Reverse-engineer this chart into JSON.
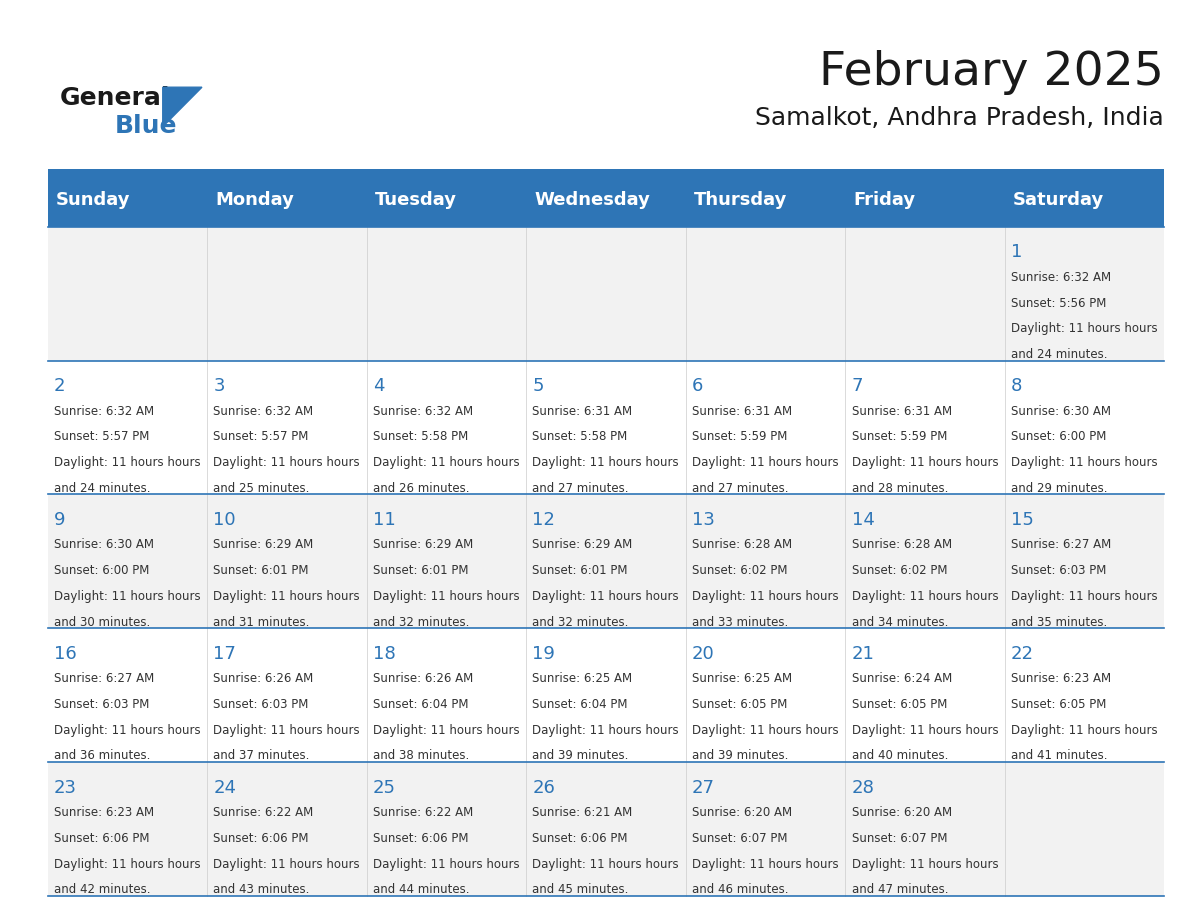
{
  "title": "February 2025",
  "subtitle": "Samalkot, Andhra Pradesh, India",
  "days_of_week": [
    "Sunday",
    "Monday",
    "Tuesday",
    "Wednesday",
    "Thursday",
    "Friday",
    "Saturday"
  ],
  "header_bg": "#2e75b6",
  "header_text_color": "#ffffff",
  "cell_bg_light": "#f2f2f2",
  "cell_bg_white": "#ffffff",
  "grid_line_color": "#2e75b6",
  "day_num_color": "#2e75b6",
  "text_color": "#333333",
  "calendar_data": [
    [
      null,
      null,
      null,
      null,
      null,
      null,
      {
        "day": 1,
        "sunrise": "6:32 AM",
        "sunset": "5:56 PM",
        "daylight": "11 hours and 24 minutes."
      }
    ],
    [
      {
        "day": 2,
        "sunrise": "6:32 AM",
        "sunset": "5:57 PM",
        "daylight": "11 hours and 24 minutes."
      },
      {
        "day": 3,
        "sunrise": "6:32 AM",
        "sunset": "5:57 PM",
        "daylight": "11 hours and 25 minutes."
      },
      {
        "day": 4,
        "sunrise": "6:32 AM",
        "sunset": "5:58 PM",
        "daylight": "11 hours and 26 minutes."
      },
      {
        "day": 5,
        "sunrise": "6:31 AM",
        "sunset": "5:58 PM",
        "daylight": "11 hours and 27 minutes."
      },
      {
        "day": 6,
        "sunrise": "6:31 AM",
        "sunset": "5:59 PM",
        "daylight": "11 hours and 27 minutes."
      },
      {
        "day": 7,
        "sunrise": "6:31 AM",
        "sunset": "5:59 PM",
        "daylight": "11 hours and 28 minutes."
      },
      {
        "day": 8,
        "sunrise": "6:30 AM",
        "sunset": "6:00 PM",
        "daylight": "11 hours and 29 minutes."
      }
    ],
    [
      {
        "day": 9,
        "sunrise": "6:30 AM",
        "sunset": "6:00 PM",
        "daylight": "11 hours and 30 minutes."
      },
      {
        "day": 10,
        "sunrise": "6:29 AM",
        "sunset": "6:01 PM",
        "daylight": "11 hours and 31 minutes."
      },
      {
        "day": 11,
        "sunrise": "6:29 AM",
        "sunset": "6:01 PM",
        "daylight": "11 hours and 32 minutes."
      },
      {
        "day": 12,
        "sunrise": "6:29 AM",
        "sunset": "6:01 PM",
        "daylight": "11 hours and 32 minutes."
      },
      {
        "day": 13,
        "sunrise": "6:28 AM",
        "sunset": "6:02 PM",
        "daylight": "11 hours and 33 minutes."
      },
      {
        "day": 14,
        "sunrise": "6:28 AM",
        "sunset": "6:02 PM",
        "daylight": "11 hours and 34 minutes."
      },
      {
        "day": 15,
        "sunrise": "6:27 AM",
        "sunset": "6:03 PM",
        "daylight": "11 hours and 35 minutes."
      }
    ],
    [
      {
        "day": 16,
        "sunrise": "6:27 AM",
        "sunset": "6:03 PM",
        "daylight": "11 hours and 36 minutes."
      },
      {
        "day": 17,
        "sunrise": "6:26 AM",
        "sunset": "6:03 PM",
        "daylight": "11 hours and 37 minutes."
      },
      {
        "day": 18,
        "sunrise": "6:26 AM",
        "sunset": "6:04 PM",
        "daylight": "11 hours and 38 minutes."
      },
      {
        "day": 19,
        "sunrise": "6:25 AM",
        "sunset": "6:04 PM",
        "daylight": "11 hours and 39 minutes."
      },
      {
        "day": 20,
        "sunrise": "6:25 AM",
        "sunset": "6:05 PM",
        "daylight": "11 hours and 39 minutes."
      },
      {
        "day": 21,
        "sunrise": "6:24 AM",
        "sunset": "6:05 PM",
        "daylight": "11 hours and 40 minutes."
      },
      {
        "day": 22,
        "sunrise": "6:23 AM",
        "sunset": "6:05 PM",
        "daylight": "11 hours and 41 minutes."
      }
    ],
    [
      {
        "day": 23,
        "sunrise": "6:23 AM",
        "sunset": "6:06 PM",
        "daylight": "11 hours and 42 minutes."
      },
      {
        "day": 24,
        "sunrise": "6:22 AM",
        "sunset": "6:06 PM",
        "daylight": "11 hours and 43 minutes."
      },
      {
        "day": 25,
        "sunrise": "6:22 AM",
        "sunset": "6:06 PM",
        "daylight": "11 hours and 44 minutes."
      },
      {
        "day": 26,
        "sunrise": "6:21 AM",
        "sunset": "6:06 PM",
        "daylight": "11 hours and 45 minutes."
      },
      {
        "day": 27,
        "sunrise": "6:20 AM",
        "sunset": "6:07 PM",
        "daylight": "11 hours and 46 minutes."
      },
      {
        "day": 28,
        "sunrise": "6:20 AM",
        "sunset": "6:07 PM",
        "daylight": "11 hours and 47 minutes."
      },
      null
    ]
  ],
  "logo_text_general": "General",
  "logo_text_blue": "Blue",
  "logo_color_general": "#1a1a1a",
  "logo_color_blue": "#2e75b6",
  "logo_triangle_color": "#2e75b6"
}
